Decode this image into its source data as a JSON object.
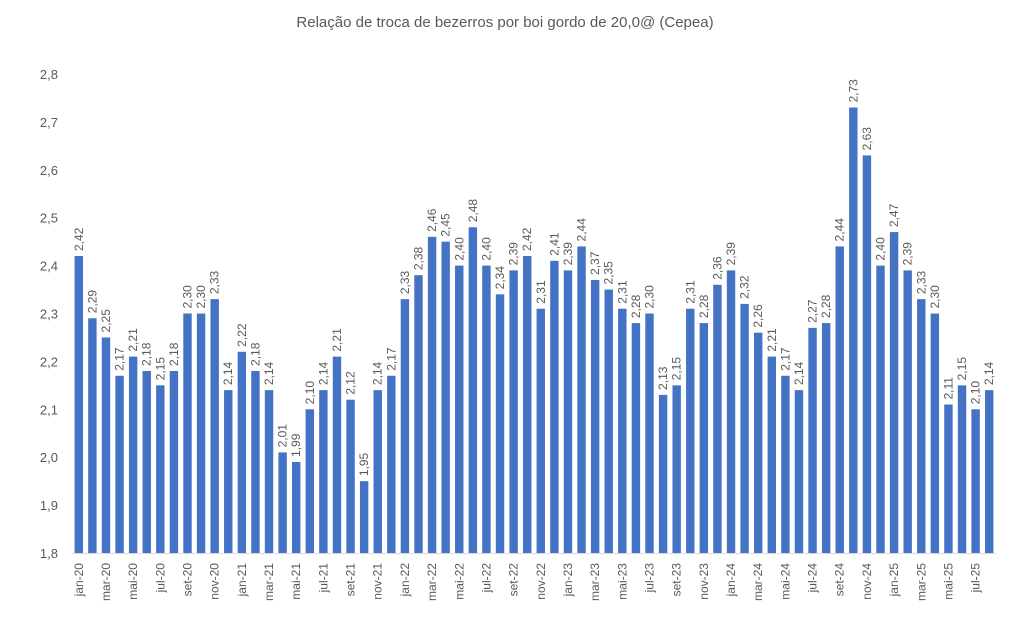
{
  "chart_data": {
    "type": "bar",
    "title": "Relação de troca de bezerros por boi gordo de 20,0@ (Cepea)",
    "xlabel": "",
    "ylabel": "",
    "ylim": [
      1.8,
      2.8
    ],
    "yticks": [
      "1,8",
      "1,9",
      "2,0",
      "2,1",
      "2,2",
      "2,3",
      "2,4",
      "2,5",
      "2,6",
      "2,7",
      "2,8"
    ],
    "grid": false,
    "bar_color": "#4472C4",
    "x_tick_labels": [
      "jan-20",
      "mar-20",
      "mai-20",
      "jul-20",
      "set-20",
      "nov-20",
      "jan-21",
      "mar-21",
      "mai-21",
      "jul-21",
      "set-21",
      "nov-21",
      "jan-22",
      "mar-22",
      "mai-22",
      "jul-22",
      "set-22",
      "nov-22",
      "jan-23",
      "mar-23",
      "mai-23",
      "jul-23",
      "set-23",
      "nov-23",
      "jan-24",
      "mar-24",
      "mai-24",
      "jul-24",
      "set-24",
      "nov-24",
      "jan-25",
      "mar-25",
      "mai-25",
      "jul-25"
    ],
    "values": [
      2.42,
      2.29,
      2.25,
      2.17,
      2.21,
      2.18,
      2.15,
      2.18,
      2.3,
      2.3,
      2.33,
      2.14,
      2.22,
      2.18,
      2.14,
      2.01,
      1.99,
      2.1,
      2.14,
      2.21,
      2.12,
      1.95,
      2.14,
      2.17,
      2.33,
      2.38,
      2.46,
      2.45,
      2.4,
      2.48,
      2.4,
      2.34,
      2.39,
      2.42,
      2.31,
      2.41,
      2.39,
      2.44,
      2.37,
      2.35,
      2.31,
      2.28,
      2.3,
      2.13,
      2.15,
      2.31,
      2.28,
      2.36,
      2.39,
      2.32,
      2.26,
      2.21,
      2.17,
      2.14,
      2.27,
      2.28,
      2.44,
      2.73,
      2.63,
      2.4,
      2.47,
      2.39,
      2.33,
      2.3,
      2.11,
      2.15,
      2.1,
      2.14
    ]
  }
}
